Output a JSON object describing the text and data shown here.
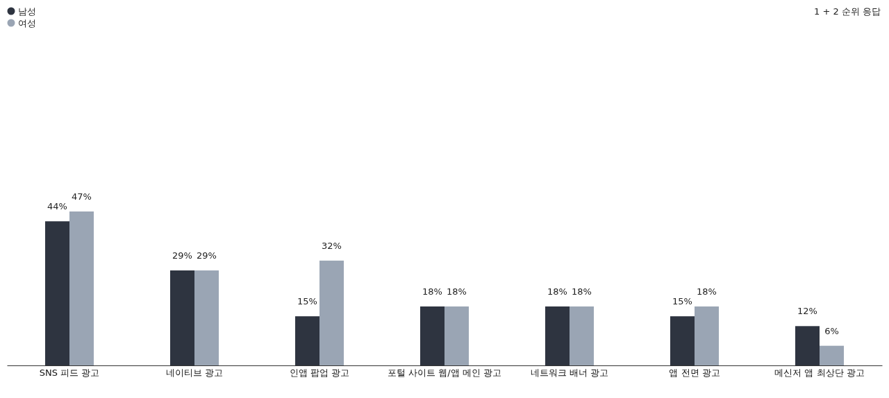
{
  "chart_data": {
    "type": "bar",
    "categories": [
      "SNS 피드 광고",
      "네이티브 광고",
      "인앱 팝업 광고",
      "포털 사이트 웹/앱 메인 광고",
      "네트워크 배너 광고",
      "앱 전면 광고",
      "메신저 앱 최상단 광고"
    ],
    "series": [
      {
        "name": "남성",
        "color": "#2e3440",
        "values": [
          44,
          29,
          15,
          18,
          18,
          15,
          12
        ],
        "value_labels": [
          "44%",
          "29%",
          "15%",
          "18%",
          "18%",
          "15%",
          "12%"
        ]
      },
      {
        "name": "여성",
        "color": "#9aa5b4",
        "values": [
          47,
          29,
          32,
          18,
          18,
          18,
          6
        ],
        "value_labels": [
          "47%",
          "29%",
          "32%",
          "18%",
          "18%",
          "18%",
          "6%"
        ]
      }
    ],
    "tick_labels": "x",
    "legend": "top left",
    "annotations": [
      "1 + 2 순위 응답"
    ]
  }
}
